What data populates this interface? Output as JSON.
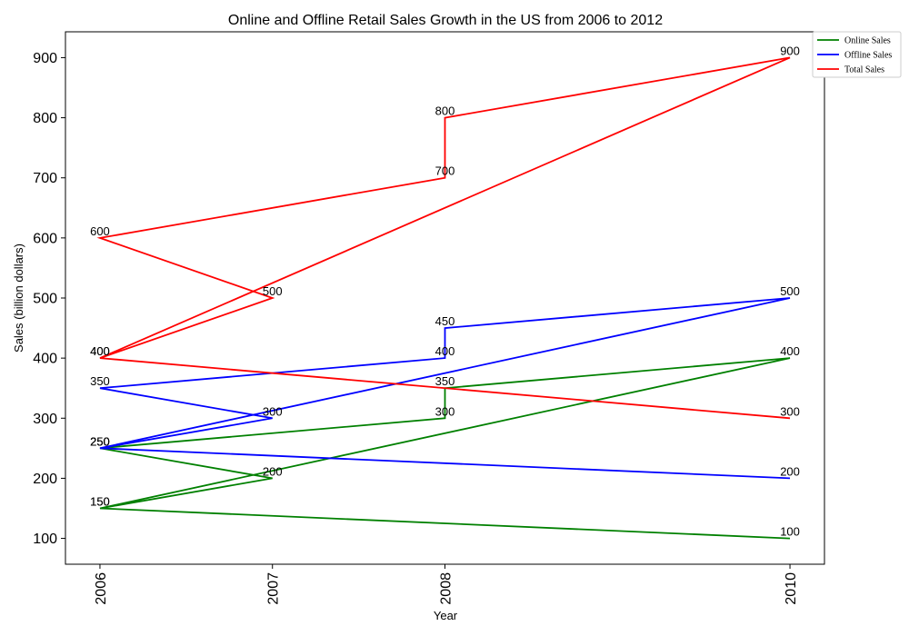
{
  "chart_data": {
    "type": "line",
    "title": "Online and Offline Retail Sales Growth in the US from 2006 to 2012",
    "xlabel": "Year",
    "ylabel": "Sales (billion dollars)",
    "x_ticks": [
      "2006",
      "2007",
      "2008",
      "2010"
    ],
    "y_ticks": [
      100,
      200,
      300,
      400,
      500,
      600,
      700,
      800,
      900
    ],
    "xlim": [
      2005.8,
      2010.2
    ],
    "ylim": [
      57,
      943
    ],
    "grid": false,
    "legend_position": "top-right outside",
    "series": [
      {
        "name": "Online Sales",
        "color": "#008000",
        "points": [
          {
            "x": 2006,
            "y": 150
          },
          {
            "x": 2007,
            "y": 200
          },
          {
            "x": 2006,
            "y": 250
          },
          {
            "x": 2008,
            "y": 300
          },
          {
            "x": 2008,
            "y": 350
          },
          {
            "x": 2010,
            "y": 400
          },
          {
            "x": 2006,
            "y": 150
          },
          {
            "x": 2010,
            "y": 100
          }
        ]
      },
      {
        "name": "Offline Sales",
        "color": "#0000ff",
        "points": [
          {
            "x": 2006,
            "y": 250
          },
          {
            "x": 2007,
            "y": 300
          },
          {
            "x": 2006,
            "y": 350
          },
          {
            "x": 2008,
            "y": 400
          },
          {
            "x": 2008,
            "y": 450
          },
          {
            "x": 2010,
            "y": 500
          },
          {
            "x": 2006,
            "y": 250
          },
          {
            "x": 2010,
            "y": 200
          }
        ]
      },
      {
        "name": "Total Sales",
        "color": "#ff0000",
        "points": [
          {
            "x": 2006,
            "y": 400
          },
          {
            "x": 2007,
            "y": 500
          },
          {
            "x": 2006,
            "y": 600
          },
          {
            "x": 2008,
            "y": 700
          },
          {
            "x": 2008,
            "y": 800
          },
          {
            "x": 2010,
            "y": 900
          },
          {
            "x": 2006,
            "y": 400
          },
          {
            "x": 2010,
            "y": 300
          }
        ]
      }
    ]
  }
}
